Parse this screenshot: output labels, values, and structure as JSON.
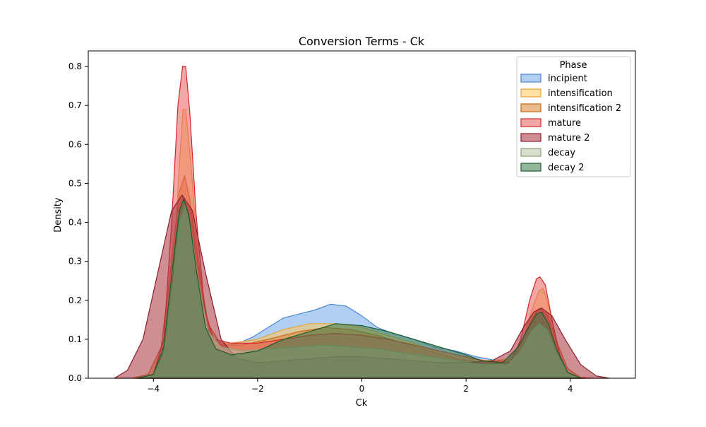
{
  "chart_data": {
    "type": "area",
    "title": "Conversion Terms - Ck",
    "xlabel": "Ck",
    "ylabel": "Density",
    "xlim": [
      -5.25,
      5.25
    ],
    "ylim": [
      0,
      0.84
    ],
    "xticks": [
      -4,
      -2,
      0,
      2,
      4
    ],
    "xtick_labels": [
      "−4",
      "−2",
      "0",
      "2",
      "4"
    ],
    "yticks": [
      0.0,
      0.1,
      0.2,
      0.3,
      0.4,
      0.5,
      0.6,
      0.7,
      0.8
    ],
    "ytick_labels": [
      "0.0",
      "0.1",
      "0.2",
      "0.3",
      "0.4",
      "0.5",
      "0.6",
      "0.7",
      "0.8"
    ],
    "legend": {
      "title": "Phase",
      "position": "top-right"
    },
    "grid": false,
    "series": [
      {
        "name": "incipient",
        "fill": "#6fa8ea",
        "stroke": "#4a86cf",
        "points": [
          [
            -4.3,
            0
          ],
          [
            -4.0,
            0.005
          ],
          [
            -3.75,
            0.04
          ],
          [
            -3.55,
            0.2
          ],
          [
            -3.45,
            0.36
          ],
          [
            -3.4,
            0.38
          ],
          [
            -3.3,
            0.33
          ],
          [
            -3.15,
            0.22
          ],
          [
            -2.95,
            0.11
          ],
          [
            -2.7,
            0.085
          ],
          [
            -2.4,
            0.088
          ],
          [
            -2.1,
            0.105
          ],
          [
            -1.8,
            0.13
          ],
          [
            -1.5,
            0.155
          ],
          [
            -1.2,
            0.165
          ],
          [
            -0.9,
            0.175
          ],
          [
            -0.6,
            0.19
          ],
          [
            -0.3,
            0.185
          ],
          [
            0.0,
            0.16
          ],
          [
            0.3,
            0.13
          ],
          [
            0.6,
            0.115
          ],
          [
            1.0,
            0.1
          ],
          [
            1.4,
            0.08
          ],
          [
            1.8,
            0.07
          ],
          [
            2.2,
            0.055
          ],
          [
            2.6,
            0.045
          ],
          [
            2.9,
            0.04
          ],
          [
            3.1,
            0.06
          ],
          [
            3.25,
            0.1
          ],
          [
            3.35,
            0.14
          ],
          [
            3.45,
            0.155
          ],
          [
            3.55,
            0.13
          ],
          [
            3.7,
            0.07
          ],
          [
            3.9,
            0.02
          ],
          [
            4.1,
            0.003
          ],
          [
            4.3,
            0
          ]
        ]
      },
      {
        "name": "intensification",
        "fill": "#ffc857",
        "stroke": "#e8a33a",
        "points": [
          [
            -4.3,
            0
          ],
          [
            -4.0,
            0.008
          ],
          [
            -3.75,
            0.07
          ],
          [
            -3.6,
            0.3
          ],
          [
            -3.5,
            0.55
          ],
          [
            -3.43,
            0.69
          ],
          [
            -3.38,
            0.69
          ],
          [
            -3.28,
            0.55
          ],
          [
            -3.15,
            0.32
          ],
          [
            -3.0,
            0.15
          ],
          [
            -2.8,
            0.09
          ],
          [
            -2.5,
            0.09
          ],
          [
            -2.0,
            0.1
          ],
          [
            -1.5,
            0.125
          ],
          [
            -1.0,
            0.14
          ],
          [
            -0.5,
            0.14
          ],
          [
            0.0,
            0.13
          ],
          [
            0.5,
            0.11
          ],
          [
            1.0,
            0.09
          ],
          [
            1.5,
            0.065
          ],
          [
            2.0,
            0.05
          ],
          [
            2.5,
            0.045
          ],
          [
            2.9,
            0.05
          ],
          [
            3.1,
            0.1
          ],
          [
            3.25,
            0.17
          ],
          [
            3.4,
            0.225
          ],
          [
            3.48,
            0.23
          ],
          [
            3.6,
            0.18
          ],
          [
            3.75,
            0.08
          ],
          [
            3.9,
            0.02
          ],
          [
            4.1,
            0.002
          ],
          [
            4.3,
            0
          ]
        ]
      },
      {
        "name": "intensification 2",
        "fill": "#d98431",
        "stroke": "#c56a1c",
        "points": [
          [
            -4.4,
            0
          ],
          [
            -4.1,
            0.01
          ],
          [
            -3.85,
            0.08
          ],
          [
            -3.65,
            0.3
          ],
          [
            -3.5,
            0.48
          ],
          [
            -3.4,
            0.52
          ],
          [
            -3.3,
            0.46
          ],
          [
            -3.15,
            0.3
          ],
          [
            -2.95,
            0.14
          ],
          [
            -2.7,
            0.085
          ],
          [
            -2.3,
            0.085
          ],
          [
            -1.8,
            0.1
          ],
          [
            -1.2,
            0.12
          ],
          [
            -0.7,
            0.13
          ],
          [
            -0.2,
            0.125
          ],
          [
            0.3,
            0.11
          ],
          [
            0.8,
            0.09
          ],
          [
            1.3,
            0.07
          ],
          [
            1.8,
            0.05
          ],
          [
            2.3,
            0.04
          ],
          [
            2.8,
            0.045
          ],
          [
            3.05,
            0.09
          ],
          [
            3.25,
            0.15
          ],
          [
            3.4,
            0.18
          ],
          [
            3.55,
            0.165
          ],
          [
            3.75,
            0.09
          ],
          [
            3.95,
            0.025
          ],
          [
            4.2,
            0.002
          ],
          [
            4.4,
            0
          ]
        ]
      },
      {
        "name": "mature",
        "fill": "#e85c5c",
        "stroke": "#d62728",
        "points": [
          [
            -4.3,
            0
          ],
          [
            -4.0,
            0.01
          ],
          [
            -3.8,
            0.1
          ],
          [
            -3.65,
            0.4
          ],
          [
            -3.53,
            0.7
          ],
          [
            -3.44,
            0.8
          ],
          [
            -3.38,
            0.8
          ],
          [
            -3.3,
            0.68
          ],
          [
            -3.18,
            0.42
          ],
          [
            -3.02,
            0.18
          ],
          [
            -2.85,
            0.1
          ],
          [
            -2.5,
            0.09
          ],
          [
            -2.0,
            0.09
          ],
          [
            -1.5,
            0.1
          ],
          [
            -1.0,
            0.11
          ],
          [
            -0.5,
            0.115
          ],
          [
            0.0,
            0.11
          ],
          [
            0.5,
            0.1
          ],
          [
            1.0,
            0.085
          ],
          [
            1.5,
            0.07
          ],
          [
            2.0,
            0.055
          ],
          [
            2.5,
            0.04
          ],
          [
            2.85,
            0.04
          ],
          [
            3.05,
            0.1
          ],
          [
            3.22,
            0.2
          ],
          [
            3.35,
            0.255
          ],
          [
            3.42,
            0.26
          ],
          [
            3.52,
            0.24
          ],
          [
            3.65,
            0.15
          ],
          [
            3.8,
            0.06
          ],
          [
            3.95,
            0.015
          ],
          [
            4.15,
            0.001
          ],
          [
            4.3,
            0
          ]
        ]
      },
      {
        "name": "mature 2",
        "fill": "#a8323c",
        "stroke": "#8b1e2b",
        "points": [
          [
            -4.75,
            0
          ],
          [
            -4.5,
            0.02
          ],
          [
            -4.2,
            0.1
          ],
          [
            -3.9,
            0.28
          ],
          [
            -3.65,
            0.43
          ],
          [
            -3.45,
            0.47
          ],
          [
            -3.25,
            0.43
          ],
          [
            -3.0,
            0.27
          ],
          [
            -2.7,
            0.1
          ],
          [
            -2.4,
            0.05
          ],
          [
            -2.0,
            0.04
          ],
          [
            -1.5,
            0.045
          ],
          [
            -1.0,
            0.05
          ],
          [
            -0.5,
            0.055
          ],
          [
            0.0,
            0.055
          ],
          [
            0.5,
            0.05
          ],
          [
            1.0,
            0.045
          ],
          [
            1.5,
            0.04
          ],
          [
            2.0,
            0.04
          ],
          [
            2.5,
            0.045
          ],
          [
            2.85,
            0.07
          ],
          [
            3.1,
            0.13
          ],
          [
            3.3,
            0.17
          ],
          [
            3.45,
            0.18
          ],
          [
            3.65,
            0.16
          ],
          [
            3.9,
            0.1
          ],
          [
            4.2,
            0.035
          ],
          [
            4.5,
            0.006
          ],
          [
            4.75,
            0
          ]
        ]
      },
      {
        "name": "decay",
        "fill": "#b7c3a3",
        "stroke": "#8e9f7b",
        "points": [
          [
            -4.3,
            0
          ],
          [
            -4.0,
            0.01
          ],
          [
            -3.8,
            0.06
          ],
          [
            -3.62,
            0.25
          ],
          [
            -3.5,
            0.4
          ],
          [
            -3.4,
            0.44
          ],
          [
            -3.3,
            0.4
          ],
          [
            -3.15,
            0.26
          ],
          [
            -2.95,
            0.12
          ],
          [
            -2.7,
            0.08
          ],
          [
            -2.3,
            0.07
          ],
          [
            -1.8,
            0.075
          ],
          [
            -1.2,
            0.08
          ],
          [
            -0.7,
            0.085
          ],
          [
            -0.2,
            0.08
          ],
          [
            0.3,
            0.075
          ],
          [
            0.8,
            0.065
          ],
          [
            1.3,
            0.055
          ],
          [
            1.8,
            0.045
          ],
          [
            2.3,
            0.035
          ],
          [
            2.8,
            0.035
          ],
          [
            3.05,
            0.07
          ],
          [
            3.25,
            0.12
          ],
          [
            3.4,
            0.14
          ],
          [
            3.55,
            0.125
          ],
          [
            3.75,
            0.06
          ],
          [
            3.95,
            0.015
          ],
          [
            4.2,
            0
          ]
        ]
      },
      {
        "name": "decay 2",
        "fill": "#3c7b4a",
        "stroke": "#1f5a2e",
        "points": [
          [
            -4.3,
            0
          ],
          [
            -4.0,
            0.01
          ],
          [
            -3.8,
            0.08
          ],
          [
            -3.62,
            0.3
          ],
          [
            -3.5,
            0.43
          ],
          [
            -3.42,
            0.46
          ],
          [
            -3.32,
            0.42
          ],
          [
            -3.18,
            0.28
          ],
          [
            -3.0,
            0.13
          ],
          [
            -2.8,
            0.075
          ],
          [
            -2.5,
            0.06
          ],
          [
            -2.0,
            0.07
          ],
          [
            -1.5,
            0.1
          ],
          [
            -1.0,
            0.12
          ],
          [
            -0.5,
            0.14
          ],
          [
            0.0,
            0.135
          ],
          [
            0.5,
            0.12
          ],
          [
            1.0,
            0.1
          ],
          [
            1.5,
            0.08
          ],
          [
            2.0,
            0.06
          ],
          [
            2.3,
            0.045
          ],
          [
            2.7,
            0.04
          ],
          [
            3.0,
            0.08
          ],
          [
            3.2,
            0.13
          ],
          [
            3.35,
            0.165
          ],
          [
            3.45,
            0.17
          ],
          [
            3.58,
            0.14
          ],
          [
            3.75,
            0.07
          ],
          [
            3.95,
            0.015
          ],
          [
            4.2,
            0
          ]
        ]
      }
    ]
  }
}
